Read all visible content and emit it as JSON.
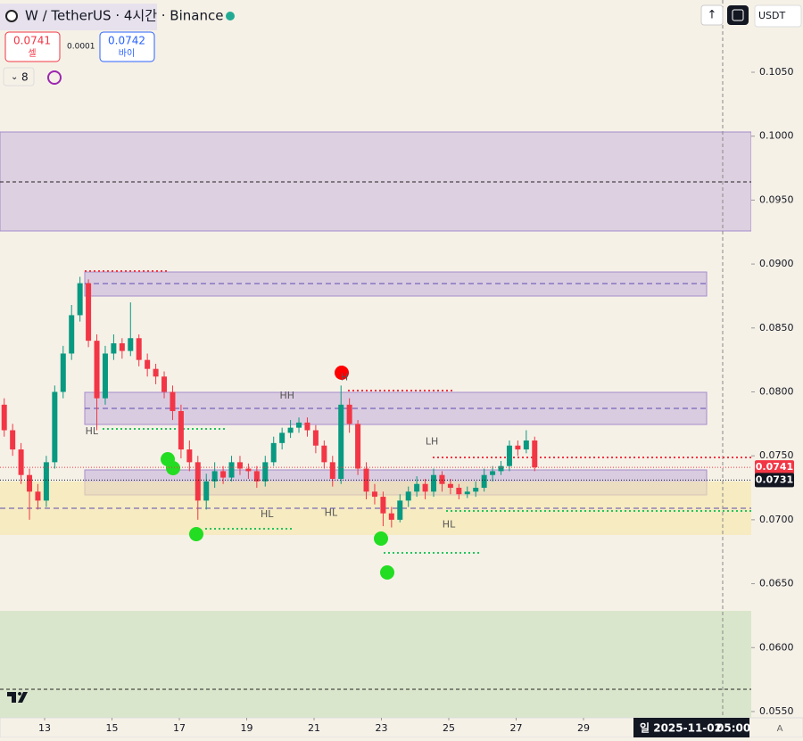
{
  "header": {
    "symbol": "W / TetherUS · 4시간 · Binance",
    "sell_price": "0.0741",
    "sell_label": "셀",
    "spread": "0.0001",
    "buy_price": "0.0742",
    "buy_label": "바이",
    "indicator_count": "8",
    "currency": "USDT"
  },
  "footer": {
    "date": "일 2025-11-02",
    "time": "05:00",
    "mode": "A"
  },
  "chart_data": {
    "type": "candlestick",
    "x": [
      11.8,
      12.05,
      12.3,
      12.55,
      12.8,
      13.05,
      13.3,
      13.55,
      13.8,
      14.05,
      14.3,
      14.55,
      14.8,
      15.05,
      15.3,
      15.55,
      15.8,
      16.05,
      16.3,
      16.55,
      16.8,
      17.05,
      17.3,
      17.55,
      17.8,
      18.05,
      18.3,
      18.55,
      18.8,
      19.05,
      19.3,
      19.55,
      19.8,
      20.05,
      20.3,
      20.55,
      20.8,
      21.05,
      21.3,
      21.55,
      21.8,
      22.05,
      22.3,
      22.55,
      22.8,
      23.05,
      23.3,
      23.55,
      23.8,
      24.05,
      24.3,
      24.55,
      24.8,
      25.05,
      25.3,
      25.55,
      25.8,
      26.05,
      26.3,
      26.55,
      26.8,
      27.05,
      27.3,
      27.55
    ],
    "open": [
      0.079,
      0.077,
      0.0755,
      0.0735,
      0.0722,
      0.0715,
      0.0745,
      0.08,
      0.083,
      0.086,
      0.0885,
      0.084,
      0.0795,
      0.083,
      0.0838,
      0.0832,
      0.0842,
      0.0825,
      0.0818,
      0.0812,
      0.08,
      0.0785,
      0.0755,
      0.0745,
      0.0715,
      0.073,
      0.0738,
      0.0733,
      0.0745,
      0.074,
      0.0738,
      0.073,
      0.0745,
      0.076,
      0.0768,
      0.0772,
      0.0776,
      0.077,
      0.0758,
      0.0745,
      0.0732,
      0.079,
      0.0775,
      0.074,
      0.0722,
      0.0718,
      0.0705,
      0.07,
      0.0715,
      0.0722,
      0.0728,
      0.0722,
      0.0735,
      0.0728,
      0.0725,
      0.072,
      0.0722,
      0.0725,
      0.0735,
      0.0738,
      0.0742,
      0.0758,
      0.0755,
      0.0762
    ],
    "high": [
      0.0795,
      0.0775,
      0.076,
      0.074,
      0.0728,
      0.075,
      0.0805,
      0.0836,
      0.0868,
      0.089,
      0.0888,
      0.0845,
      0.0836,
      0.0845,
      0.0842,
      0.087,
      0.0845,
      0.083,
      0.0822,
      0.0816,
      0.0805,
      0.079,
      0.0762,
      0.075,
      0.0736,
      0.0745,
      0.0742,
      0.075,
      0.075,
      0.0744,
      0.0742,
      0.075,
      0.0765,
      0.0772,
      0.0778,
      0.078,
      0.078,
      0.0774,
      0.0762,
      0.075,
      0.0805,
      0.0795,
      0.0778,
      0.0745,
      0.0728,
      0.0722,
      0.071,
      0.072,
      0.0726,
      0.0734,
      0.0732,
      0.074,
      0.0738,
      0.0732,
      0.0728,
      0.0726,
      0.073,
      0.074,
      0.0742,
      0.0746,
      0.0762,
      0.0762,
      0.077,
      0.0765
    ],
    "low": [
      0.0765,
      0.075,
      0.0728,
      0.07,
      0.0708,
      0.071,
      0.074,
      0.0795,
      0.0825,
      0.0855,
      0.0835,
      0.077,
      0.079,
      0.0825,
      0.0826,
      0.0828,
      0.082,
      0.0812,
      0.0806,
      0.0795,
      0.0778,
      0.0748,
      0.0738,
      0.07,
      0.0708,
      0.0725,
      0.0728,
      0.073,
      0.0735,
      0.0732,
      0.0725,
      0.0726,
      0.0742,
      0.0755,
      0.0764,
      0.0768,
      0.0765,
      0.0752,
      0.074,
      0.0726,
      0.0728,
      0.0768,
      0.0735,
      0.0716,
      0.0712,
      0.0695,
      0.0694,
      0.0698,
      0.071,
      0.0718,
      0.0716,
      0.0718,
      0.0722,
      0.072,
      0.0716,
      0.0717,
      0.0718,
      0.0722,
      0.073,
      0.0735,
      0.0738,
      0.075,
      0.0752,
      0.0738
    ],
    "close": [
      0.077,
      0.0755,
      0.0735,
      0.0722,
      0.0715,
      0.0745,
      0.08,
      0.083,
      0.086,
      0.0885,
      0.084,
      0.0795,
      0.083,
      0.0838,
      0.0832,
      0.0842,
      0.0825,
      0.0818,
      0.0812,
      0.08,
      0.0785,
      0.0755,
      0.0745,
      0.0715,
      0.073,
      0.0738,
      0.0733,
      0.0745,
      0.074,
      0.0738,
      0.073,
      0.0745,
      0.076,
      0.0768,
      0.0772,
      0.0776,
      0.077,
      0.0758,
      0.0745,
      0.0732,
      0.079,
      0.0775,
      0.074,
      0.0722,
      0.0718,
      0.0705,
      0.07,
      0.0715,
      0.0722,
      0.0728,
      0.0722,
      0.0735,
      0.0728,
      0.0725,
      0.072,
      0.0722,
      0.0725,
      0.0735,
      0.0738,
      0.0742,
      0.0758,
      0.0755,
      0.0762,
      0.0741
    ],
    "up_color": "#089981",
    "down_color": "#f23645",
    "xlim": [
      11.675,
      33.98
    ],
    "xticks": [
      13,
      15,
      17,
      19,
      21,
      23,
      25,
      27,
      29
    ],
    "ylim": [
      0.05451,
      0.11065
    ],
    "yticks": [
      {
        "value": 0.105,
        "label": "0.1050"
      },
      {
        "value": 0.1,
        "label": "0.1000"
      },
      {
        "value": 0.095,
        "label": "0.0950"
      },
      {
        "value": 0.09,
        "label": "0.0900"
      },
      {
        "value": 0.085,
        "label": "0.0850"
      },
      {
        "value": 0.08,
        "label": "0.0800"
      },
      {
        "value": 0.075,
        "label": "0.0750"
      },
      {
        "value": 0.07,
        "label": "0.0700"
      },
      {
        "value": 0.065,
        "label": "0.0650"
      },
      {
        "value": 0.06,
        "label": "0.0600"
      },
      {
        "value": 0.055,
        "label": "0.0550"
      }
    ],
    "price_labels": [
      {
        "value": 0.0741,
        "label": "0.0741",
        "color": "#f23645"
      },
      {
        "value": 0.0731,
        "label": "0.0731",
        "color": "#131722"
      }
    ],
    "annotations": [
      {
        "text": "HL",
        "x": 14.4,
        "y": 0.0769
      },
      {
        "text": "HH",
        "x": 20.2,
        "y": 0.0797
      },
      {
        "text": "H",
        "x": 21.9,
        "y": 0.0811
      },
      {
        "text": "HL",
        "x": 19.6,
        "y": 0.0704
      },
      {
        "text": "HL",
        "x": 21.5,
        "y": 0.0705
      },
      {
        "text": "HL",
        "x": 25.0,
        "y": 0.0696
      },
      {
        "text": "LH",
        "x": 24.5,
        "y": 0.0761
      }
    ]
  }
}
